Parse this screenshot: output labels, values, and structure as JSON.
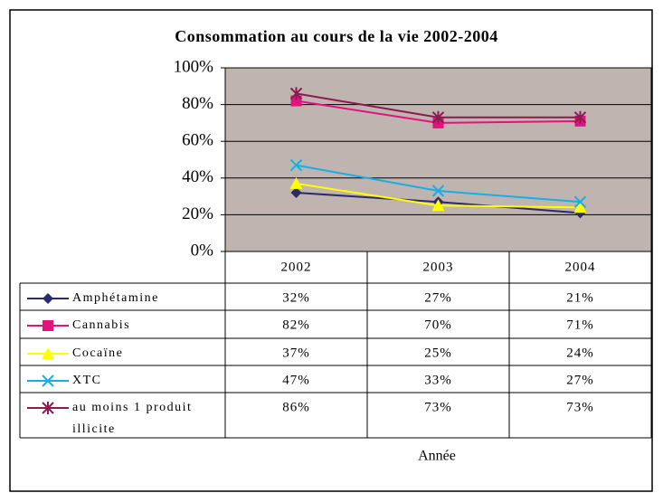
{
  "chart_data": {
    "type": "line",
    "title": "Consommation au cours de la vie 2002-2004",
    "x_label": "Année",
    "categories": [
      "2002",
      "2003",
      "2004"
    ],
    "series": [
      {
        "name": "Amphétamine",
        "color": "#2b2b6b",
        "marker": "diamond",
        "values": [
          32,
          27,
          21
        ],
        "value_labels": [
          "32%",
          "27%",
          "21%"
        ]
      },
      {
        "name": "Cannabis",
        "color": "#e2127f",
        "marker": "square",
        "values": [
          82,
          70,
          71
        ],
        "value_labels": [
          "82%",
          "70%",
          "71%"
        ]
      },
      {
        "name": "Cocaïne",
        "color": "#ffff00",
        "marker": "triangle",
        "values": [
          37,
          25,
          24
        ],
        "value_labels": [
          "37%",
          "25%",
          "24%"
        ]
      },
      {
        "name": "XTC",
        "color": "#17aee6",
        "marker": "x",
        "values": [
          47,
          33,
          27
        ],
        "value_labels": [
          "47%",
          "33%",
          "27%"
        ]
      },
      {
        "name": "au moins 1 produit illicite",
        "color": "#8a1b4e",
        "marker": "star",
        "values": [
          86,
          73,
          73
        ],
        "value_labels": [
          "86%",
          "73%",
          "73%"
        ]
      }
    ],
    "ylim": [
      0,
      100
    ],
    "yticks": [
      {
        "value": 0,
        "label": "0%"
      },
      {
        "value": 20,
        "label": "20%"
      },
      {
        "value": 40,
        "label": "40%"
      },
      {
        "value": 60,
        "label": "60%"
      },
      {
        "value": 80,
        "label": "80%"
      },
      {
        "value": 100,
        "label": "100%"
      }
    ],
    "grid": true,
    "plot_background": "#c0b4b0"
  }
}
